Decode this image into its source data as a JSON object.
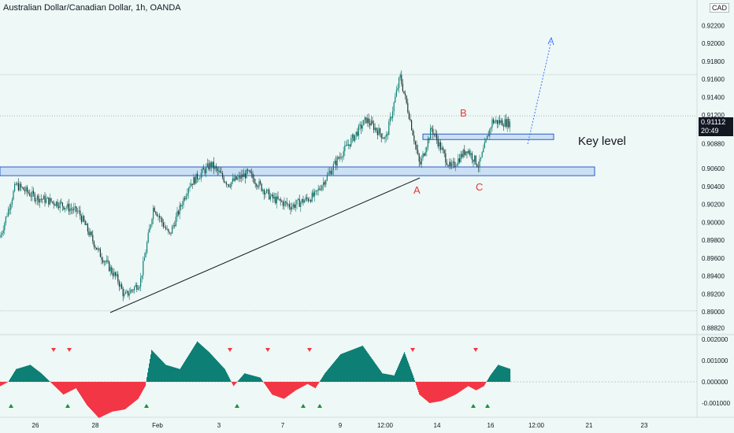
{
  "header": {
    "title": "Australian Dollar/Canadian Dollar, 1h, OANDA",
    "currency": "CAD"
  },
  "price_badge": {
    "price": "0.91112",
    "countdown": "20:49"
  },
  "annotations": {
    "a": "A",
    "b": "B",
    "c": "C",
    "key": "Key level"
  },
  "colors": {
    "up": "#0e7f74",
    "down": "#f23645",
    "box_fill": "#bcd6f5",
    "box_stroke": "#2c5cc5",
    "arrow": "#2962ff"
  },
  "chart_data": [
    {
      "type": "candlestick",
      "y_ticks": [
        "0.92200",
        "0.92000",
        "0.91800",
        "0.91600",
        "0.91400",
        "0.91200",
        "0.90880",
        "0.90600",
        "0.90400",
        "0.90200",
        "0.90000",
        "0.89800",
        "0.89600",
        "0.89400",
        "0.89200",
        "0.89000",
        "0.88820"
      ],
      "x_ticks": [
        "26",
        "28",
        "Feb",
        "3",
        "7",
        "9",
        "12:00",
        "14",
        "16",
        "12:00",
        "21",
        "23"
      ],
      "approx_close_path": [
        [
          0,
          0.8983
        ],
        [
          20,
          0.9042
        ],
        [
          45,
          0.9028
        ],
        [
          75,
          0.9021
        ],
        [
          100,
          0.9011
        ],
        [
          125,
          0.8967
        ],
        [
          150,
          0.8935
        ],
        [
          158,
          0.8917
        ],
        [
          178,
          0.8933
        ],
        [
          195,
          0.9018
        ],
        [
          215,
          0.8985
        ],
        [
          240,
          0.9042
        ],
        [
          268,
          0.9065
        ],
        [
          290,
          0.9043
        ],
        [
          315,
          0.9055
        ],
        [
          345,
          0.9027
        ],
        [
          370,
          0.9018
        ],
        [
          400,
          0.903
        ],
        [
          430,
          0.9072
        ],
        [
          465,
          0.9115
        ],
        [
          490,
          0.9093
        ],
        [
          508,
          0.9163
        ],
        [
          520,
          0.9118
        ],
        [
          533,
          0.9063
        ],
        [
          548,
          0.9105
        ],
        [
          572,
          0.906
        ],
        [
          593,
          0.9082
        ],
        [
          608,
          0.9063
        ],
        [
          625,
          0.9113
        ],
        [
          648,
          0.9111
        ]
      ],
      "levels": [
        "0.90600",
        "0.90960"
      ],
      "horizontal_lines": [
        "0.91650",
        "0.91190",
        "0.89010"
      ],
      "trendline": "rising support from Jan 29 low to A"
    },
    {
      "type": "area",
      "y_ticks": [
        "0.002000",
        "0.001000",
        "0.000000",
        "-0.001000"
      ],
      "description": "oscillator histogram with up/down markers"
    }
  ]
}
